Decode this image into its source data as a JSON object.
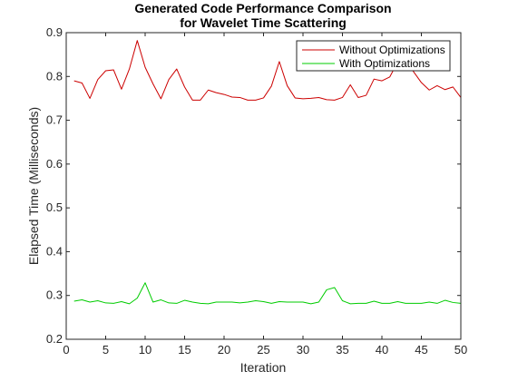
{
  "chart_data": {
    "type": "line",
    "title": [
      "Generated Code Performance Comparison",
      "for Wavelet Time Scattering"
    ],
    "xlabel": "Iteration",
    "ylabel": "Elapsed Time (Milliseconds)",
    "xlim": [
      0,
      50
    ],
    "ylim": [
      0.2,
      0.9
    ],
    "xticks": [
      0,
      5,
      10,
      15,
      20,
      25,
      30,
      35,
      40,
      45,
      50
    ],
    "yticks": [
      0.2,
      0.3,
      0.4,
      0.5,
      0.6,
      0.7,
      0.8,
      0.9
    ],
    "grid": false,
    "legend": "top-right",
    "x": [
      1,
      2,
      3,
      4,
      5,
      6,
      7,
      8,
      9,
      10,
      11,
      12,
      13,
      14,
      15,
      16,
      17,
      18,
      19,
      20,
      21,
      22,
      23,
      24,
      25,
      26,
      27,
      28,
      29,
      30,
      31,
      32,
      33,
      34,
      35,
      36,
      37,
      38,
      39,
      40,
      41,
      42,
      43,
      44,
      45,
      46,
      47,
      48,
      49,
      50
    ],
    "series": [
      {
        "name": "Without Optimizations",
        "color": "#cc0000",
        "values": [
          0.79,
          0.785,
          0.75,
          0.793,
          0.813,
          0.815,
          0.771,
          0.817,
          0.882,
          0.821,
          0.783,
          0.749,
          0.793,
          0.817,
          0.776,
          0.746,
          0.746,
          0.769,
          0.763,
          0.759,
          0.753,
          0.752,
          0.746,
          0.746,
          0.751,
          0.778,
          0.834,
          0.779,
          0.751,
          0.749,
          0.75,
          0.752,
          0.747,
          0.746,
          0.752,
          0.781,
          0.752,
          0.757,
          0.794,
          0.79,
          0.799,
          0.833,
          0.837,
          0.811,
          0.786,
          0.769,
          0.779,
          0.77,
          0.776,
          0.752
        ]
      },
      {
        "name": "With Optimizations",
        "color": "#00cc00",
        "values": [
          0.287,
          0.29,
          0.285,
          0.288,
          0.283,
          0.282,
          0.286,
          0.281,
          0.294,
          0.329,
          0.285,
          0.29,
          0.283,
          0.282,
          0.289,
          0.285,
          0.282,
          0.281,
          0.285,
          0.285,
          0.285,
          0.283,
          0.285,
          0.288,
          0.286,
          0.282,
          0.286,
          0.285,
          0.285,
          0.285,
          0.281,
          0.285,
          0.313,
          0.318,
          0.288,
          0.281,
          0.282,
          0.282,
          0.287,
          0.282,
          0.282,
          0.286,
          0.282,
          0.282,
          0.282,
          0.285,
          0.282,
          0.289,
          0.284,
          0.282
        ]
      }
    ]
  }
}
